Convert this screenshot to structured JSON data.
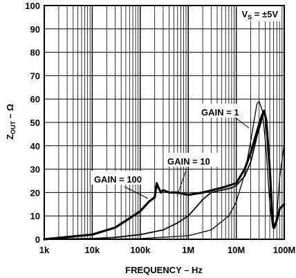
{
  "chart_data": {
    "type": "line",
    "title": "",
    "xlabel": "FREQUENCY – Hz",
    "ylabel_main": "Z",
    "ylabel_sub": "OUT",
    "ylabel_rest": " – Ω",
    "xscale": "log",
    "xlim": [
      1000,
      100000000
    ],
    "ylim": [
      0,
      100
    ],
    "grid": true,
    "x_ticks": [
      {
        "value": 1000,
        "label": "1k"
      },
      {
        "value": 10000,
        "label": "10k"
      },
      {
        "value": 100000,
        "label": "100k"
      },
      {
        "value": 1000000,
        "label": "1M"
      },
      {
        "value": 10000000,
        "label": "10M"
      },
      {
        "value": 100000000,
        "label": "100M"
      }
    ],
    "y_ticks": [
      0,
      10,
      20,
      30,
      40,
      50,
      60,
      70,
      80,
      90,
      100
    ],
    "condition": {
      "main": "V",
      "sub": "S",
      "rest": " = ±5V"
    },
    "annotations": [
      {
        "text": "GAIN = 1",
        "series": 0
      },
      {
        "text": "GAIN = 10",
        "series": 1
      },
      {
        "text": "GAIN = 100",
        "series": 2
      }
    ],
    "series": [
      {
        "name": "GAIN = 1",
        "x": [
          1000,
          10000,
          100000,
          1000000,
          3000000,
          7000000,
          10000000,
          15000000,
          20000000,
          27000000,
          30000000,
          35000000,
          42000000,
          50000000,
          57000000,
          62000000,
          70000000,
          80000000,
          100000000
        ],
        "y": [
          0,
          0,
          0.3,
          1.5,
          4,
          10,
          16,
          28,
          42,
          58,
          59,
          55,
          38,
          15,
          5,
          4.5,
          10,
          26,
          41
        ]
      },
      {
        "name": "GAIN = 10",
        "x": [
          1000,
          10000,
          30000,
          100000,
          300000,
          600000,
          1000000,
          1500000,
          2000000,
          3000000,
          5000000,
          8000000,
          10000000,
          15000000,
          20000000,
          27000000,
          33000000,
          38000000,
          42000000,
          50000000,
          57000000,
          62000000,
          70000000,
          80000000,
          100000000
        ],
        "y": [
          0,
          0.3,
          0.8,
          2,
          4,
          7,
          10,
          14,
          17,
          20,
          21,
          22,
          23,
          27,
          33,
          44,
          50,
          55,
          52,
          30,
          8,
          5,
          8,
          13,
          15
        ]
      },
      {
        "name": "GAIN = 100",
        "x": [
          1000,
          10000,
          30000,
          60000,
          100000,
          150000,
          200000,
          220000,
          240000,
          270000,
          300000,
          400000,
          600000,
          1000000,
          2000000,
          5000000,
          10000000,
          15000000,
          20000000,
          27000000,
          33000000,
          38000000,
          42000000,
          50000000,
          57000000,
          62000000,
          70000000,
          80000000,
          100000000
        ],
        "y": [
          0,
          2,
          5,
          9,
          12,
          16,
          18,
          24,
          22,
          20,
          21,
          20,
          20,
          19,
          20,
          22,
          24,
          30,
          37,
          46,
          52,
          55,
          51,
          30,
          8,
          5,
          8,
          13,
          15
        ]
      }
    ]
  }
}
